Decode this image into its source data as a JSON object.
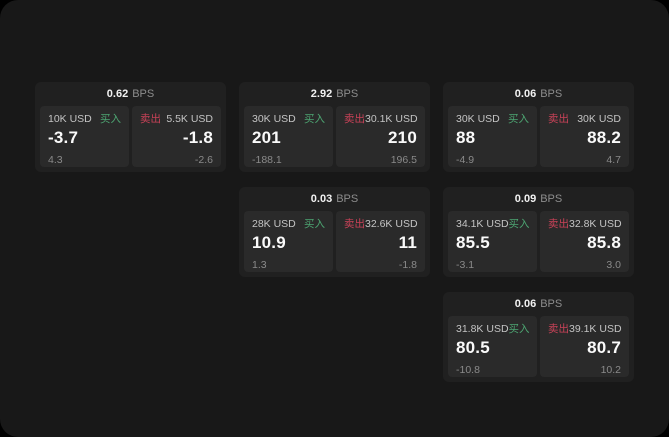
{
  "labels": {
    "bps": "BPS",
    "buy": "买入",
    "sell": "卖出"
  },
  "colors": {
    "buy_green": "#4da572",
    "sell_red": "#c94258",
    "window_bg": "#181818",
    "card_bg": "#202020",
    "panel_bg": "#2a2a2a"
  },
  "cards": [
    {
      "bps": "0.62",
      "buy": {
        "amount": "10K USD",
        "value": "-3.7",
        "delta": "4.3"
      },
      "sell": {
        "amount": "5.5K USD",
        "value": "-1.8",
        "delta": "-2.6"
      }
    },
    {
      "bps": "2.92",
      "buy": {
        "amount": "30K USD",
        "value": "201",
        "delta": "-188.1"
      },
      "sell": {
        "amount": "30.1K USD",
        "value": "210",
        "delta": "196.5"
      }
    },
    {
      "bps": "0.06",
      "buy": {
        "amount": "30K USD",
        "value": "88",
        "delta": "-4.9"
      },
      "sell": {
        "amount": "30K USD",
        "value": "88.2",
        "delta": "4.7"
      }
    },
    {
      "bps": "0.03",
      "buy": {
        "amount": "28K USD",
        "value": "10.9",
        "delta": "1.3"
      },
      "sell": {
        "amount": "32.6K USD",
        "value": "11",
        "delta": "-1.8"
      }
    },
    {
      "bps": "0.09",
      "buy": {
        "amount": "34.1K USD",
        "value": "85.5",
        "delta": "-3.1"
      },
      "sell": {
        "amount": "32.8K USD",
        "value": "85.8",
        "delta": "3.0"
      }
    },
    {
      "bps": "0.06",
      "buy": {
        "amount": "31.8K USD",
        "value": "80.5",
        "delta": "-10.8"
      },
      "sell": {
        "amount": "39.1K USD",
        "value": "80.7",
        "delta": "10.2"
      }
    }
  ]
}
